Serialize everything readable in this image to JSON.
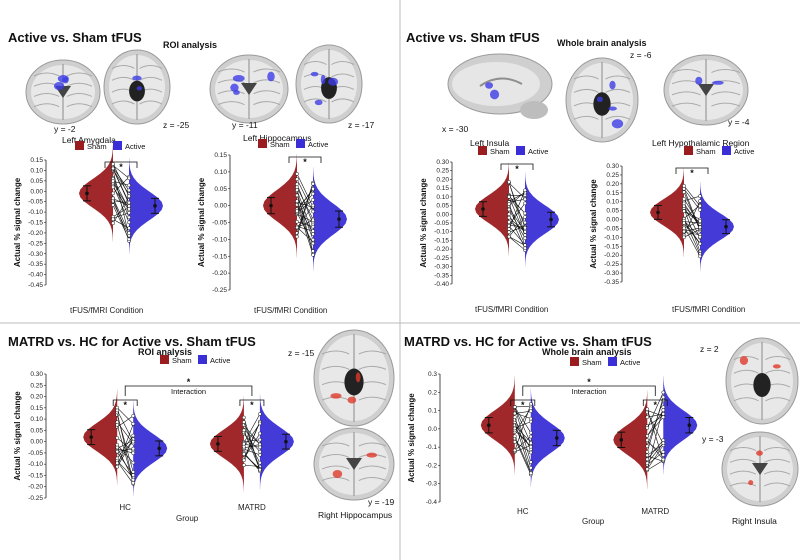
{
  "colors": {
    "sham": "#9b1c1f",
    "active": "#3a2fd6",
    "brain_overlay_blue": "#3c3ce6",
    "brain_overlay_red": "#e0392b"
  },
  "legend": {
    "sham": "Sham",
    "active": "Active"
  },
  "panels": [
    {
      "id": "tl",
      "title": "Active vs. Sham tFUS",
      "subtitle": "ROI analysis",
      "coords": [
        "y = -2",
        "z = -25",
        "y = -11",
        "z = -17"
      ],
      "charts": [
        {
          "region": "Left Amygdala",
          "ylabel": "Actual % signal change",
          "xlabel": "tFUS/fMRI Condition",
          "ylim": [
            -0.45,
            0.15
          ],
          "ticks": [
            "0.15",
            "0.10",
            "0.05",
            "0.00",
            "-0.05",
            "-0.10",
            "-0.15",
            "-0.20",
            "-0.25",
            "-0.30",
            "-0.35",
            "-0.40",
            "-0.45"
          ],
          "significance": "*",
          "sham_mean": -0.01,
          "active_mean": -0.07
        },
        {
          "region": "Left Hippocampus",
          "ylabel": "Actual % signal change",
          "xlabel": "tFUS/fMRI Condition",
          "ylim": [
            -0.25,
            0.15
          ],
          "ticks": [
            "0.15",
            "0.10",
            "0.05",
            "0.00",
            "-0.05",
            "-0.10",
            "-0.15",
            "-0.20",
            "-0.25"
          ],
          "significance": "*",
          "sham_mean": 0.0,
          "active_mean": -0.04
        }
      ]
    },
    {
      "id": "tr",
      "title": "Active vs. Sham tFUS",
      "subtitle": "Whole brain analysis",
      "coords": [
        "z = -6",
        "x = -30",
        "y = -4"
      ],
      "charts": [
        {
          "region": "Left Insula",
          "ylabel": "Actual % signal change",
          "xlabel": "tFUS/fMRI Condition",
          "ylim": [
            -0.4,
            0.3
          ],
          "ticks": [
            "0.30",
            "0.25",
            "0.20",
            "0.15",
            "0.10",
            "0.05",
            "0.00",
            "-0.05",
            "-0.10",
            "-0.15",
            "-0.20",
            "-0.25",
            "-0.30",
            "-0.35",
            "-0.40"
          ],
          "significance": "*",
          "sham_mean": 0.03,
          "active_mean": -0.03
        },
        {
          "region": "Left Hypothalamic Region",
          "ylabel": "Actual % signal change",
          "xlabel": "tFUS/fMRI Condition",
          "ylim": [
            -0.35,
            0.3
          ],
          "ticks": [
            "0.30",
            "0.25",
            "0.20",
            "0.15",
            "0.10",
            "0.05",
            "0.00",
            "-0.05",
            "-0.10",
            "-0.15",
            "-0.20",
            "-0.25",
            "-0.30",
            "-0.35"
          ],
          "significance": "*",
          "sham_mean": 0.04,
          "active_mean": -0.04
        }
      ]
    },
    {
      "id": "bl",
      "title": "MATRD vs. HC for Active vs. Sham tFUS",
      "subtitle": "ROI analysis",
      "coords": [
        "z = -15",
        "y = -19"
      ],
      "region": "Right Hippocampus",
      "chart": {
        "ylabel": "Actual % signal change",
        "xlabel": "Group",
        "groups": [
          "HC",
          "MATRD"
        ],
        "ylim": [
          -0.25,
          0.3
        ],
        "ticks": [
          "0.30",
          "0.25",
          "0.20",
          "0.15",
          "0.10",
          "0.05",
          "0.00",
          "-0.05",
          "-0.10",
          "-0.15",
          "-0.20",
          "-0.25"
        ],
        "significance": "*",
        "interaction_label": "Interaction",
        "means": {
          "HC": [
            0.02,
            -0.03
          ],
          "MATRD": [
            -0.01,
            0.0
          ]
        }
      }
    },
    {
      "id": "br",
      "title": "MATRD vs. HC for Active vs. Sham tFUS",
      "subtitle": "Whole brain analysis",
      "coords": [
        "z = 2",
        "y = -3"
      ],
      "region": "Right Insula",
      "chart": {
        "ylabel": "Actual % signal change",
        "xlabel": "Group",
        "groups": [
          "HC",
          "MATRD"
        ],
        "ylim": [
          -0.4,
          0.3
        ],
        "ticks": [
          "0.3",
          "0.2",
          "0.1",
          "0.0",
          "-0.1",
          "-0.2",
          "-0.3",
          "-0.4"
        ],
        "significance": "*",
        "interaction_label": "Interaction",
        "means": {
          "HC": [
            0.02,
            -0.05
          ],
          "MATRD": [
            -0.06,
            0.02
          ]
        }
      }
    }
  ]
}
